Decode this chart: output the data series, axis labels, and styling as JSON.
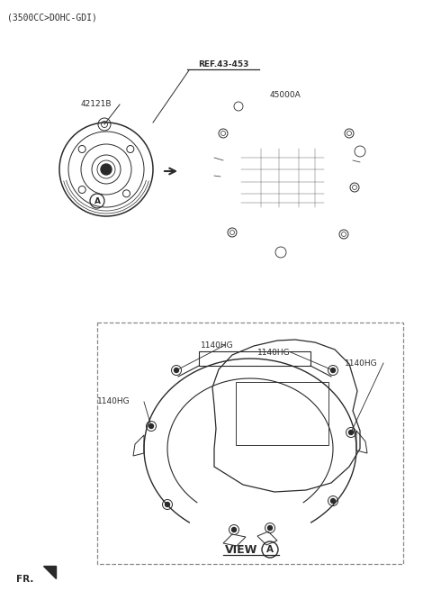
{
  "title_text": "(3500CC>DOHC-GDI)",
  "ref_label": "REF.43-453",
  "part_42121B": "42121B",
  "part_45000A": "45000A",
  "label_1140HG": "1140HG",
  "view_label": "VIEW",
  "fr_label": "FR.",
  "bg_color": "#ffffff",
  "line_color": "#2a2a2a",
  "dashed_box_color": "#888888",
  "title_fontsize": 7,
  "label_fontsize": 6.5,
  "small_fontsize": 6.5
}
